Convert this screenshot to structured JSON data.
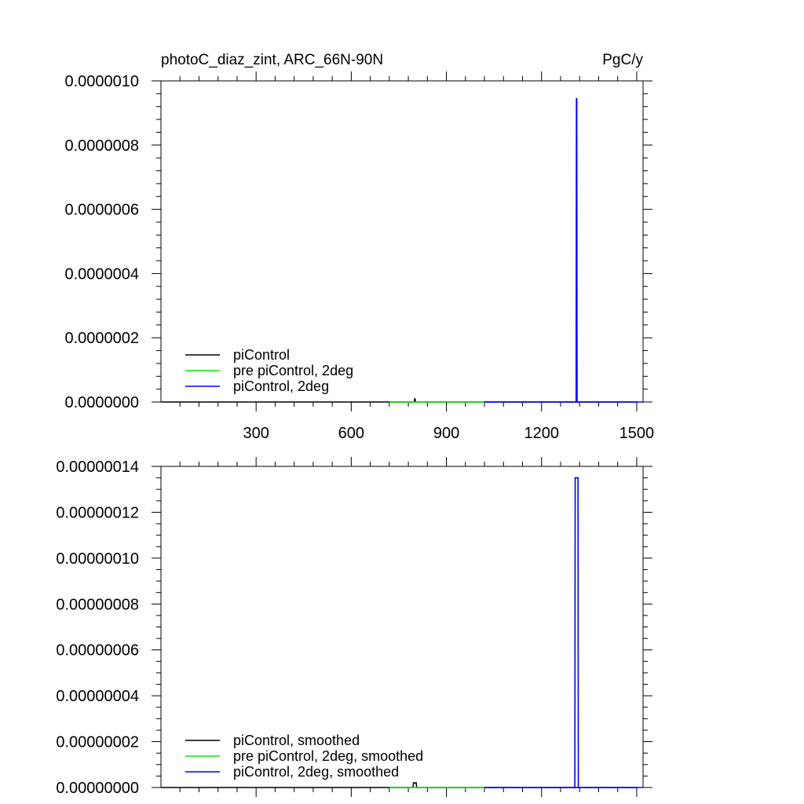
{
  "chart_data": [
    {
      "type": "line",
      "title_left": "photoC_diaz_zint, ARC_66N-90N",
      "title_right": "PgC/y",
      "xlim": [
        0,
        1520
      ],
      "ylim": [
        0,
        1e-06
      ],
      "x_ticks": [
        300,
        600,
        900,
        1200,
        1500
      ],
      "x_tick_labels": [
        "300",
        "600",
        "900",
        "1200",
        "1500"
      ],
      "y_ticks": [
        0,
        2e-07,
        4e-07,
        6e-07,
        8e-07,
        1e-06
      ],
      "y_tick_labels": [
        "0.0000000",
        "0.0000002",
        "0.0000004",
        "0.0000006",
        "0.0000008",
        "0.0000010"
      ],
      "legend_position": "bottom-left",
      "series": [
        {
          "name": "piControl",
          "color": "#000000",
          "x": [
            1,
            799,
            800,
            801,
            802,
            1500
          ],
          "y": [
            0,
            0,
            1e-08,
            1e-08,
            0,
            0
          ]
        },
        {
          "name": "pre piControl, 2deg",
          "color": "#00ee00",
          "x": [
            720,
            1020
          ],
          "y": [
            0,
            0
          ]
        },
        {
          "name": "piControl, 2deg",
          "color": "#0000ff",
          "x": [
            1020,
            1309,
            1310,
            1311,
            1312,
            1520
          ],
          "y": [
            0,
            0,
            9.45e-07,
            9.45e-07,
            0,
            0
          ]
        }
      ]
    },
    {
      "type": "line",
      "xlim": [
        0,
        1520
      ],
      "ylim": [
        0,
        1.4e-07
      ],
      "x_ticks": [
        300,
        600,
        900,
        1200,
        1500
      ],
      "y_ticks": [
        0,
        2e-08,
        4e-08,
        6e-08,
        8e-08,
        1e-07,
        1.2e-07,
        1.4e-07
      ],
      "y_tick_labels": [
        "0.00000000",
        "0.00000002",
        "0.00000004",
        "0.00000006",
        "0.00000008",
        "0.00000010",
        "0.00000012",
        "0.00000014"
      ],
      "legend_position": "bottom-left",
      "series": [
        {
          "name": "piControl, smoothed",
          "color": "#000000",
          "x": [
            1,
            795,
            796,
            805,
            806,
            1500
          ],
          "y": [
            0,
            0,
            2e-09,
            2e-09,
            0,
            0
          ]
        },
        {
          "name": "pre piControl, 2deg, smoothed",
          "color": "#00ee00",
          "x": [
            720,
            1020
          ],
          "y": [
            0,
            0
          ]
        },
        {
          "name": "piControl, 2deg, smoothed",
          "color": "#0000ff",
          "x": [
            1020,
            1305,
            1306,
            1315,
            1316,
            1520
          ],
          "y": [
            0,
            0,
            1.35e-07,
            1.35e-07,
            0,
            0
          ]
        }
      ]
    }
  ]
}
